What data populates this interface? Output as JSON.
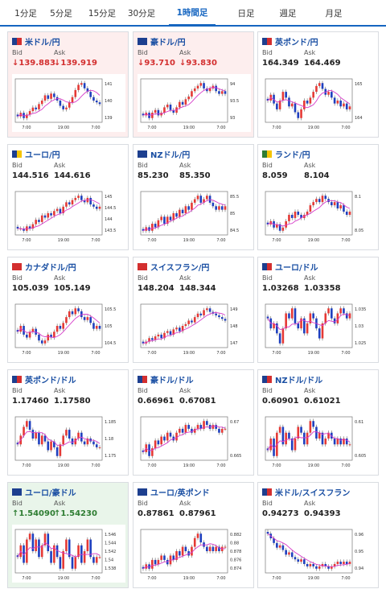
{
  "colors": {
    "up": "#e53935",
    "down": "#1e3fbf",
    "ma": "#d63bc9",
    "accent": "#1565c0"
  },
  "tabs": [
    {
      "label": "1分足"
    },
    {
      "label": "5分足"
    },
    {
      "label": "15分足"
    },
    {
      "label": "30分足"
    },
    {
      "label": "1時間足"
    },
    {
      "label": "日足"
    },
    {
      "label": "週足"
    },
    {
      "label": "月足"
    }
  ],
  "active_tab": 4,
  "bid_label": "Bid",
  "ask_label": "Ask",
  "pairs": [
    {
      "name": "米ドル/円",
      "bid": "139.883",
      "ask": "139.919",
      "dir": "down",
      "tint": "red",
      "flags": [
        "#1d3f8f",
        "#d32f2f"
      ],
      "yticks": [
        "141",
        "140",
        "139"
      ],
      "xticks": [
        "7:00",
        "19:00",
        "7:00"
      ],
      "series": [
        139.1,
        139.3,
        139.0,
        139.2,
        139.4,
        139.6,
        139.5,
        139.8,
        140.0,
        140.3,
        140.1,
        140.4,
        140.2,
        140.0,
        139.7,
        139.5,
        139.6,
        139.9,
        140.2,
        140.6,
        140.9,
        141.0,
        140.7,
        140.5,
        140.2,
        140.0,
        139.9,
        139.8
      ]
    },
    {
      "name": "豪ドル/円",
      "bid": "93.710",
      "ask": "93.830",
      "dir": "down",
      "tint": "red",
      "flags": [
        "#1d3f8f",
        "#1d3f8f"
      ],
      "yticks": [
        "94",
        "93.5",
        "93"
      ],
      "xticks": [
        "7:00",
        "19:00",
        "7:00"
      ],
      "series": [
        92.9,
        93.0,
        92.8,
        93.0,
        93.1,
        92.9,
        93.0,
        93.2,
        93.3,
        93.1,
        93.0,
        93.2,
        93.4,
        93.3,
        93.5,
        93.6,
        93.8,
        93.9,
        94.0,
        94.1,
        93.9,
        93.8,
        93.9,
        94.0,
        93.8,
        93.7,
        93.8,
        93.7
      ]
    },
    {
      "name": "英ポンド/円",
      "bid": "164.349",
      "ask": "164.469",
      "dir": "none",
      "tint": "none",
      "flags": [
        "#1d3f8f",
        "#d32f2f"
      ],
      "yticks": [
        "165",
        "164"
      ],
      "xticks": [
        "7:00",
        "19:00",
        "7:00"
      ],
      "series": [
        164.6,
        164.8,
        164.5,
        164.3,
        164.6,
        164.9,
        164.7,
        164.4,
        164.5,
        164.2,
        164.0,
        164.3,
        164.6,
        164.5,
        164.7,
        164.9,
        165.1,
        165.2,
        165.0,
        164.8,
        164.9,
        164.7,
        164.5,
        164.6,
        164.4,
        164.5,
        164.3,
        164.4
      ]
    },
    {
      "name": "ユーロ/円",
      "bid": "144.516",
      "ask": "144.616",
      "dir": "none",
      "tint": "none",
      "flags": [
        "#1d3f8f",
        "#f5c400"
      ],
      "yticks": [
        "145",
        "144.5",
        "144",
        "143.5"
      ],
      "xticks": [
        "7:00",
        "19:00",
        "7:00"
      ],
      "series": [
        143.6,
        143.6,
        143.5,
        143.7,
        143.6,
        143.8,
        144.0,
        143.9,
        144.2,
        144.1,
        144.3,
        144.2,
        144.4,
        144.5,
        144.3,
        144.6,
        144.8,
        144.7,
        144.9,
        145.0,
        145.1,
        144.9,
        144.8,
        145.0,
        144.7,
        144.6,
        144.5,
        144.6
      ]
    },
    {
      "name": "NZドル/円",
      "bid": "85.230",
      "ask": "85.350",
      "dir": "none",
      "tint": "none",
      "flags": [
        "#1d3f8f",
        "#1d3f8f"
      ],
      "yticks": [
        "85.5",
        "85",
        "84.5"
      ],
      "xticks": [
        "7:00",
        "19:00",
        "7:00"
      ],
      "series": [
        84.6,
        84.7,
        84.6,
        84.8,
        84.7,
        84.9,
        85.0,
        84.8,
        85.0,
        84.9,
        85.1,
        85.0,
        85.2,
        85.1,
        85.3,
        85.2,
        85.4,
        85.5,
        85.6,
        85.4,
        85.5,
        85.6,
        85.4,
        85.3,
        85.2,
        85.3,
        85.2,
        85.3
      ]
    },
    {
      "name": "ランド/円",
      "bid": "8.059",
      "ask": "8.104",
      "dir": "none",
      "tint": "none",
      "flags": [
        "#2e7d32",
        "#f5c400"
      ],
      "yticks": [
        "8.1",
        "8.05"
      ],
      "xticks": [
        "7:00",
        "19:00",
        "7:00"
      ],
      "series": [
        8.03,
        8.04,
        8.02,
        8.03,
        8.01,
        8.02,
        8.04,
        8.06,
        8.05,
        8.07,
        8.06,
        8.05,
        8.06,
        8.07,
        8.09,
        8.1,
        8.11,
        8.1,
        8.12,
        8.11,
        8.1,
        8.09,
        8.1,
        8.08,
        8.09,
        8.07,
        8.06,
        8.07
      ]
    },
    {
      "name": "カナダドル/円",
      "bid": "105.039",
      "ask": "105.149",
      "dir": "none",
      "tint": "none",
      "flags": [
        "#d32f2f",
        "#d32f2f"
      ],
      "yticks": [
        "105.5",
        "105",
        "104.5"
      ],
      "xticks": [
        "7:00",
        "19:00",
        "7:00"
      ],
      "series": [
        104.9,
        105.1,
        104.8,
        104.7,
        104.9,
        105.0,
        104.8,
        104.6,
        104.5,
        104.6,
        104.8,
        104.7,
        104.9,
        105.1,
        105.0,
        105.2,
        105.4,
        105.6,
        105.5,
        105.7,
        105.6,
        105.4,
        105.3,
        105.4,
        105.2,
        105.0,
        105.1,
        105.0
      ]
    },
    {
      "name": "スイスフラン/円",
      "bid": "148.204",
      "ask": "148.344",
      "dir": "none",
      "tint": "none",
      "flags": [
        "#d32f2f",
        "#d32f2f"
      ],
      "yticks": [
        "149",
        "148",
        "147"
      ],
      "xticks": [
        "7:00",
        "19:00",
        "7:00"
      ],
      "series": [
        146.9,
        147.0,
        147.2,
        147.1,
        147.3,
        147.4,
        147.2,
        147.5,
        147.6,
        147.4,
        147.7,
        147.8,
        147.6,
        147.9,
        148.0,
        148.2,
        148.1,
        148.4,
        148.6,
        148.5,
        148.8,
        148.9,
        148.7,
        148.6,
        148.5,
        148.4,
        148.3,
        148.2
      ]
    },
    {
      "name": "ユーロ/ドル",
      "bid": "1.03268",
      "ask": "1.03358",
      "dir": "none",
      "tint": "none",
      "flags": [
        "#1d3f8f",
        "#d32f2f"
      ],
      "yticks": [
        "1.035",
        "1.03",
        "1.025"
      ],
      "xticks": [
        "7:00",
        "19:00",
        "7:00"
      ],
      "series": [
        1.032,
        1.03,
        1.031,
        1.029,
        1.027,
        1.03,
        1.033,
        1.032,
        1.034,
        1.031,
        1.03,
        1.032,
        1.029,
        1.031,
        1.033,
        1.032,
        1.03,
        1.028,
        1.031,
        1.033,
        1.034,
        1.032,
        1.031,
        1.033,
        1.034,
        1.033,
        1.032,
        1.033
      ]
    },
    {
      "name": "英ポンド/ドル",
      "bid": "1.17460",
      "ask": "1.17580",
      "dir": "none",
      "tint": "none",
      "flags": [
        "#1d3f8f",
        "#d32f2f"
      ],
      "yticks": [
        "1.185",
        "1.18",
        "1.175"
      ],
      "xticks": [
        "7:00",
        "19:00",
        "7:00"
      ],
      "series": [
        1.176,
        1.179,
        1.182,
        1.184,
        1.181,
        1.178,
        1.18,
        1.176,
        1.179,
        1.177,
        1.174,
        1.177,
        1.175,
        1.172,
        1.176,
        1.179,
        1.181,
        1.178,
        1.176,
        1.178,
        1.18,
        1.177,
        1.176,
        1.178,
        1.177,
        1.176,
        1.175,
        1.175
      ]
    },
    {
      "name": "豪ドル/ドル",
      "bid": "0.66961",
      "ask": "0.67081",
      "dir": "none",
      "tint": "none",
      "flags": [
        "#1d3f8f",
        "#d32f2f"
      ],
      "yticks": [
        "0.67",
        "0.665"
      ],
      "xticks": [
        "7:00",
        "19:00",
        "7:00"
      ],
      "series": [
        0.664,
        0.666,
        0.663,
        0.665,
        0.667,
        0.666,
        0.668,
        0.667,
        0.669,
        0.668,
        0.667,
        0.669,
        0.67,
        0.669,
        0.671,
        0.67,
        0.669,
        0.67,
        0.671,
        0.67,
        0.672,
        0.671,
        0.67,
        0.671,
        0.67,
        0.669,
        0.67,
        0.67
      ]
    },
    {
      "name": "NZドル/ドル",
      "bid": "0.60901",
      "ask": "0.61021",
      "dir": "none",
      "tint": "none",
      "flags": [
        "#1d3f8f",
        "#d32f2f"
      ],
      "yticks": [
        "0.61",
        "0.605"
      ],
      "xticks": [
        "7:00",
        "19:00",
        "7:00"
      ],
      "series": [
        0.608,
        0.61,
        0.607,
        0.611,
        0.612,
        0.609,
        0.611,
        0.61,
        0.608,
        0.61,
        0.612,
        0.611,
        0.609,
        0.611,
        0.613,
        0.612,
        0.61,
        0.611,
        0.609,
        0.61,
        0.611,
        0.61,
        0.609,
        0.61,
        0.609,
        0.61,
        0.609,
        0.609
      ]
    },
    {
      "name": "ユーロ/豪ドル",
      "bid": "1.54090",
      "ask": "1.54230",
      "dir": "up",
      "tint": "green",
      "flags": [
        "#1d3f8f",
        "#1d3f8f"
      ],
      "yticks": [
        "1.546",
        "1.544",
        "1.542",
        "1.54",
        "1.538"
      ],
      "xticks": [
        "7:00",
        "19:00",
        "7:00"
      ],
      "series": [
        1.541,
        1.543,
        1.54,
        1.544,
        1.545,
        1.542,
        1.544,
        1.541,
        1.543,
        1.545,
        1.542,
        1.54,
        1.543,
        1.541,
        1.539,
        1.542,
        1.544,
        1.541,
        1.539,
        1.541,
        1.543,
        1.54,
        1.542,
        1.544,
        1.541,
        1.54,
        1.541,
        1.541
      ]
    },
    {
      "name": "ユーロ/英ポンド",
      "bid": "0.87861",
      "ask": "0.87961",
      "dir": "none",
      "tint": "none",
      "flags": [
        "#1d3f8f",
        "#1d3f8f"
      ],
      "yticks": [
        "0.882",
        "0.88",
        "0.878",
        "0.876",
        "0.874"
      ],
      "xticks": [
        "7:00",
        "19:00",
        "7:00"
      ],
      "series": [
        0.874,
        0.875,
        0.874,
        0.876,
        0.875,
        0.876,
        0.877,
        0.876,
        0.875,
        0.877,
        0.876,
        0.878,
        0.877,
        0.879,
        0.878,
        0.877,
        0.879,
        0.881,
        0.882,
        0.88,
        0.879,
        0.878,
        0.879,
        0.878,
        0.879,
        0.878,
        0.879,
        0.879
      ]
    },
    {
      "name": "米ドル/スイスフラン",
      "bid": "0.94273",
      "ask": "0.94393",
      "dir": "none",
      "tint": "none",
      "flags": [
        "#1d3f8f",
        "#d32f2f"
      ],
      "yticks": [
        "0.96",
        "0.95",
        "0.94"
      ],
      "xticks": [
        "7:00",
        "19:00",
        "7:00"
      ],
      "series": [
        0.955,
        0.953,
        0.951,
        0.949,
        0.95,
        0.948,
        0.946,
        0.947,
        0.945,
        0.944,
        0.943,
        0.944,
        0.942,
        0.941,
        0.942,
        0.941,
        0.94,
        0.941,
        0.942,
        0.941,
        0.94,
        0.941,
        0.942,
        0.943,
        0.942,
        0.943,
        0.942,
        0.943
      ]
    }
  ]
}
